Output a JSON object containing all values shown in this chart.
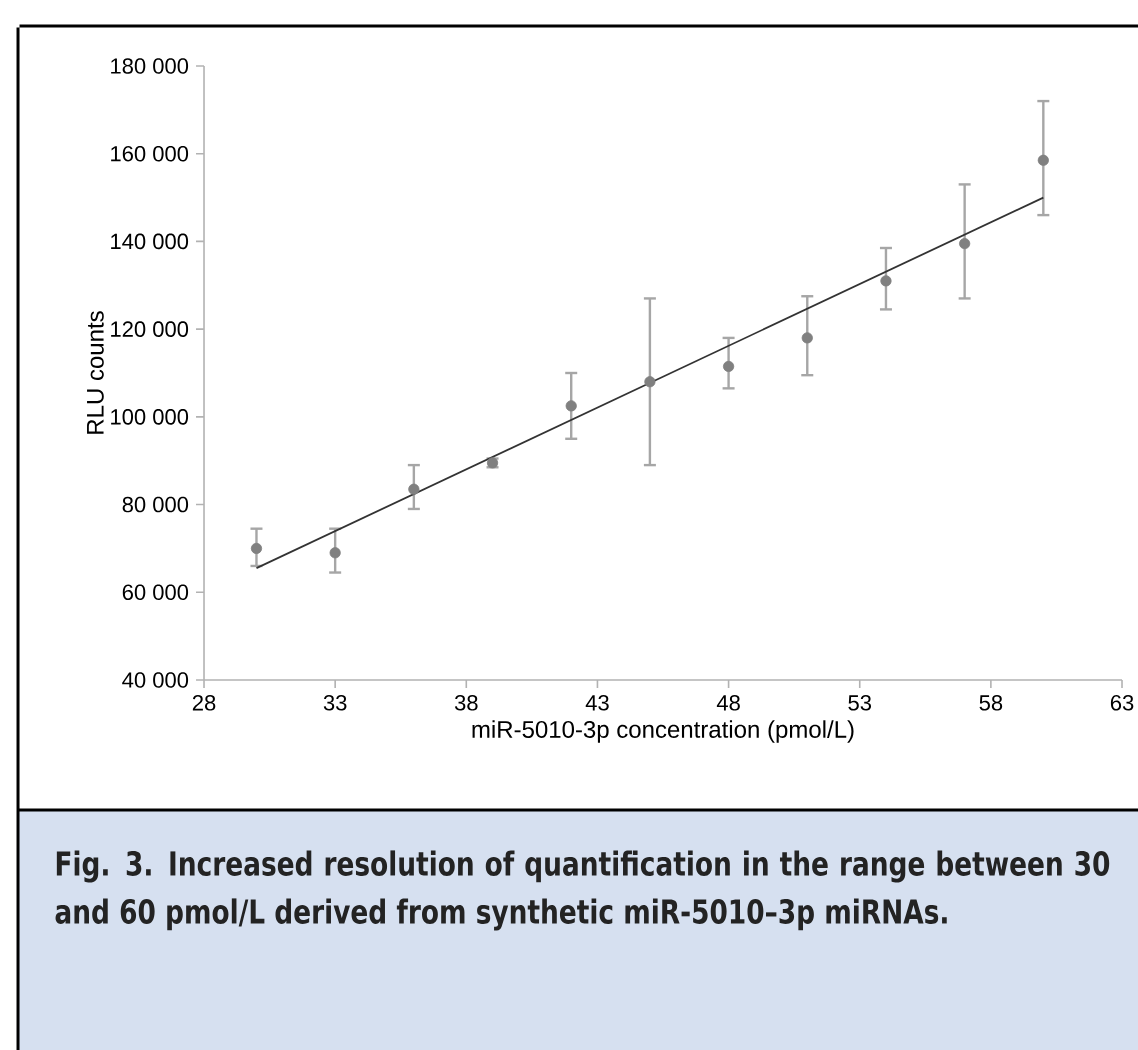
{
  "chart_data": {
    "type": "scatter",
    "xlabel": "miR-5010-3p concentration (pmol/L)",
    "ylabel": "RLU counts",
    "xlim": [
      28,
      63
    ],
    "xticks": [
      28,
      33,
      38,
      43,
      48,
      53,
      58,
      63
    ],
    "ylim": [
      40000,
      180000
    ],
    "yticks": [
      {
        "value": 40000,
        "label": "40 000"
      },
      {
        "value": 60000,
        "label": "60 000"
      },
      {
        "value": 80000,
        "label": "80 000"
      },
      {
        "value": 100000,
        "label": "100 000"
      },
      {
        "value": 120000,
        "label": "120 000"
      },
      {
        "value": 140000,
        "label": "140 000"
      },
      {
        "value": 160000,
        "label": "160 000"
      },
      {
        "value": 180000,
        "label": "180 000"
      }
    ],
    "series": [
      {
        "color": "#808080",
        "marker": "circle",
        "x": [
          30,
          33,
          36,
          39,
          42,
          45,
          48,
          51,
          54,
          57,
          60
        ],
        "values": [
          70000,
          69000,
          83500,
          89500,
          102500,
          108000,
          111500,
          118000,
          131000,
          139500,
          158500
        ],
        "errors": [
          [
            66000,
            74500
          ],
          [
            64500,
            74500
          ],
          [
            79000,
            89000
          ],
          [
            88500,
            90500
          ],
          [
            95000,
            110000
          ],
          [
            89000,
            127000
          ],
          [
            106500,
            118000
          ],
          [
            109500,
            127500
          ],
          [
            124500,
            138500
          ],
          [
            127000,
            153000
          ],
          [
            146000,
            172000
          ]
        ]
      },
      {
        "type": "line",
        "color": "#333333",
        "marker": "none",
        "line_style": "solid",
        "x": [
          30,
          60
        ],
        "values": [
          65500,
          150000
        ]
      }
    ],
    "annotations": [
      "**Fig. 3.** Increased resolution of quantification in the range between 30 and 60 pmol/L derived from synthetic miR-5010–3p miRNAs."
    ]
  }
}
